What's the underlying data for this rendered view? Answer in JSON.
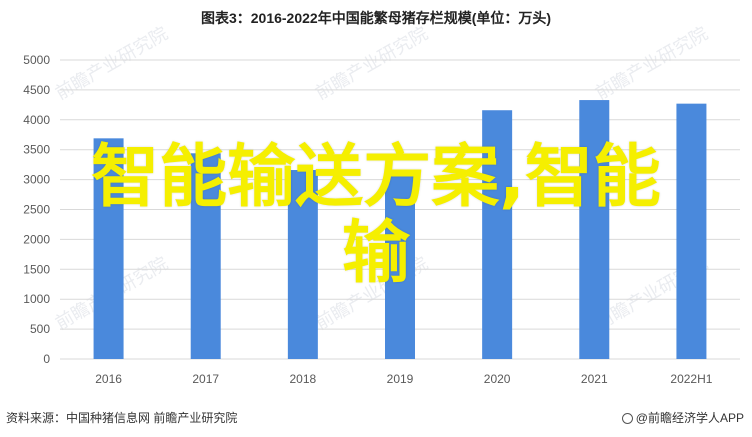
{
  "chart_data": {
    "type": "bar",
    "title": "图表3：2016-2022年中国能繁母猪存栏规模(单位：万头)",
    "categories": [
      "2016",
      "2017",
      "2018",
      "2019",
      "2020",
      "2021",
      "2022H1"
    ],
    "values": [
      3690,
      3440,
      3160,
      3100,
      4160,
      4330,
      4270
    ],
    "ylim": [
      0,
      5000
    ],
    "yticks": [
      0,
      500,
      1000,
      1500,
      2000,
      2500,
      3000,
      3500,
      4000,
      4500,
      5000
    ],
    "xlabel": "",
    "ylabel": "",
    "grid": true,
    "bar_color": "#4a89dc"
  },
  "watermark": "前瞻产业研究院",
  "overlay_text": [
    "智能输送方案,智能",
    "输"
  ],
  "footer": {
    "source": "资料来源：中国种猪信息网 前瞻产业研究院",
    "brand": "@前瞻经济学人APP"
  }
}
